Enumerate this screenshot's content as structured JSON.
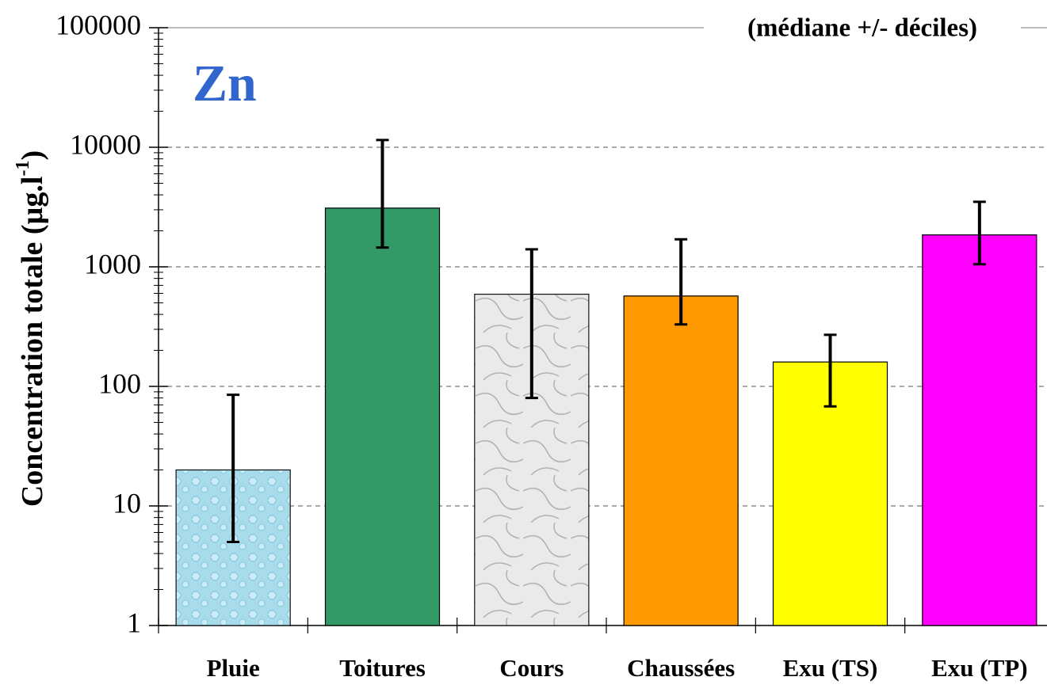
{
  "chart_data": {
    "type": "bar",
    "title": "Zn",
    "annotation": "(médiane +/- déciles)",
    "y_label": [
      "Concentration totale (µg.l",
      "-1",
      ")"
    ],
    "categories": [
      "Pluie",
      "Toitures",
      "Cours",
      "Chaussées",
      "Exu (TS)",
      "Exu (TP)"
    ],
    "values": [
      20,
      3100,
      590,
      570,
      160,
      1850
    ],
    "low": [
      5,
      1450,
      80,
      330,
      68,
      1050
    ],
    "high": [
      85,
      11500,
      1400,
      1700,
      270,
      3500
    ],
    "colors": [
      "#a9dcec",
      "#339966",
      "#e6e6e6",
      "#ff9900",
      "#ffff00",
      "#ff00ff"
    ],
    "log_scale": true,
    "ylim": [
      1,
      100000
    ],
    "yticks": [
      1,
      10,
      100,
      1000,
      10000,
      100000
    ],
    "grid": true
  }
}
